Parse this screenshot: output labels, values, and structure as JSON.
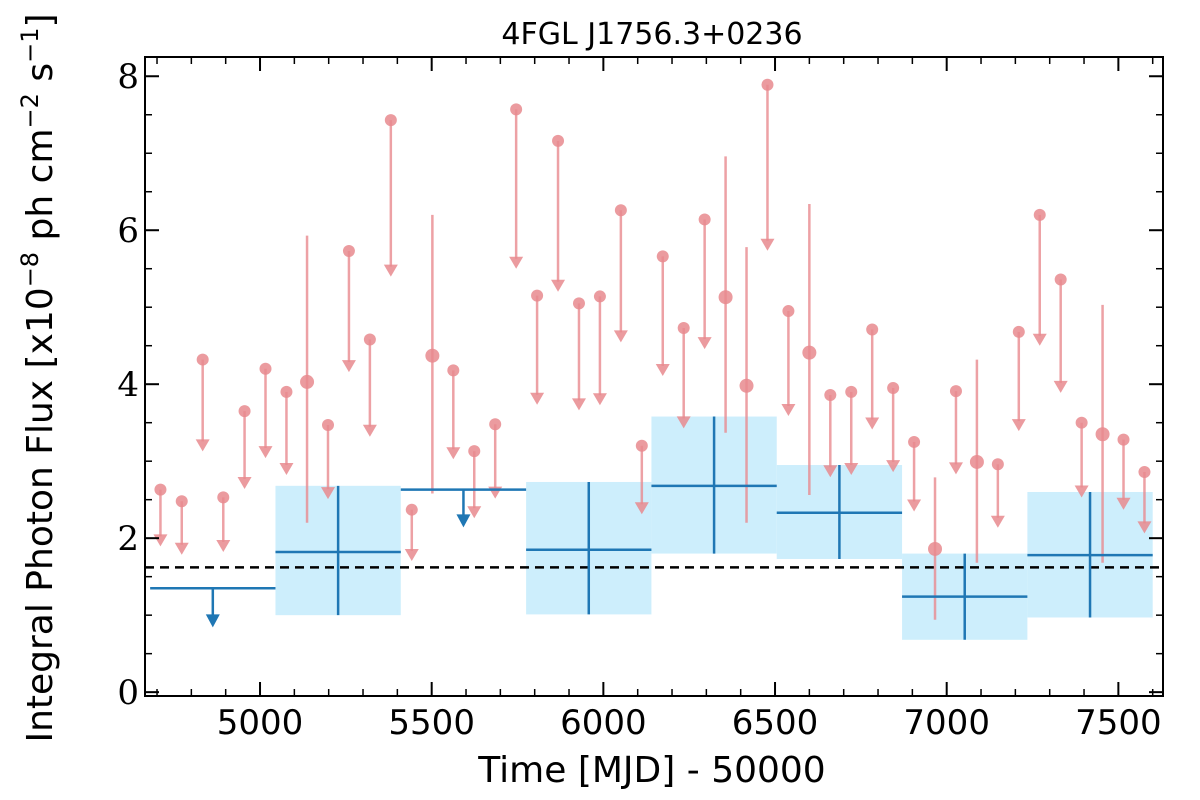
{
  "chart_data": {
    "type": "scatter",
    "title": "4FGL J1756.3+0236",
    "xlabel": "Time [MJD] - 50000",
    "ylabel_main": "Integral Photon Flux [x10",
    "ylabel_exp1": "−8",
    "ylabel_mid": " ph cm",
    "ylabel_exp2": "−2",
    "ylabel_end": " s",
    "ylabel_exp3": "−1",
    "ylabel_close": "]",
    "xlim": [
      4665,
      7630
    ],
    "ylim": [
      -0.05,
      8.25
    ],
    "xticks": [
      5000,
      5500,
      6000,
      6500,
      7000,
      7500
    ],
    "xtick_labels": [
      "5000",
      "5500",
      "6000",
      "6500",
      "7000",
      "7500"
    ],
    "yticks": [
      0,
      2,
      4,
      6,
      8
    ],
    "ytick_labels": [
      "0",
      "2",
      "4",
      "6",
      "8"
    ],
    "baseline_flux": 1.62,
    "colors": {
      "yearly": "#1f77b4",
      "yearly_band": "#cdeefc",
      "monthly": "#e88a8e",
      "baseline": "#000000"
    },
    "yearly_upper_limits": [
      {
        "x_start": 4680,
        "x_end": 5045,
        "y": 1.35,
        "y_arrow_tip": 0.88
      }
    ],
    "yearly_bins_ul2": [
      {
        "x_start": 5410,
        "x_end": 5775,
        "y": 2.63,
        "y_arrow_tip": 2.18
      }
    ],
    "yearly_detections": [
      {
        "x_start": 5045,
        "x_end": 5410,
        "y": 1.82,
        "y_low": 1.0,
        "y_high": 2.68
      },
      {
        "x_start": 5775,
        "x_end": 6140,
        "y": 1.85,
        "y_low": 1.01,
        "y_high": 2.73
      },
      {
        "x_start": 6140,
        "x_end": 6505,
        "y": 2.68,
        "y_low": 1.8,
        "y_high": 3.58
      },
      {
        "x_start": 6505,
        "x_end": 6870,
        "y": 2.33,
        "y_low": 1.73,
        "y_high": 2.95
      },
      {
        "x_start": 6870,
        "x_end": 7235,
        "y": 1.24,
        "y_low": 0.68,
        "y_high": 1.8
      },
      {
        "x_start": 7235,
        "x_end": 7600,
        "y": 1.78,
        "y_low": 0.97,
        "y_high": 2.6
      }
    ],
    "monthly_upper_limits": [
      {
        "x": 4710,
        "y": 2.63
      },
      {
        "x": 4772,
        "y": 2.48
      },
      {
        "x": 4833,
        "y": 4.32
      },
      {
        "x": 4893,
        "y": 2.53
      },
      {
        "x": 4955,
        "y": 3.65
      },
      {
        "x": 5016,
        "y": 4.2
      },
      {
        "x": 5077,
        "y": 3.9
      },
      {
        "x": 5198,
        "y": 3.47
      },
      {
        "x": 5259,
        "y": 5.73
      },
      {
        "x": 5320,
        "y": 4.58
      },
      {
        "x": 5381,
        "y": 7.43
      },
      {
        "x": 5442,
        "y": 2.37
      },
      {
        "x": 5563,
        "y": 4.18
      },
      {
        "x": 5624,
        "y": 3.13
      },
      {
        "x": 5685,
        "y": 3.48
      },
      {
        "x": 5746,
        "y": 7.57
      },
      {
        "x": 5807,
        "y": 5.15
      },
      {
        "x": 5868,
        "y": 7.16
      },
      {
        "x": 5929,
        "y": 5.05
      },
      {
        "x": 5990,
        "y": 5.14
      },
      {
        "x": 6051,
        "y": 6.26
      },
      {
        "x": 6112,
        "y": 3.2
      },
      {
        "x": 6173,
        "y": 5.66
      },
      {
        "x": 6234,
        "y": 4.73
      },
      {
        "x": 6295,
        "y": 6.14
      },
      {
        "x": 6478,
        "y": 7.89
      },
      {
        "x": 6539,
        "y": 4.95
      },
      {
        "x": 6661,
        "y": 3.86
      },
      {
        "x": 6722,
        "y": 3.9
      },
      {
        "x": 6783,
        "y": 4.71
      },
      {
        "x": 6844,
        "y": 3.95
      },
      {
        "x": 6905,
        "y": 3.25
      },
      {
        "x": 7027,
        "y": 3.91
      },
      {
        "x": 7149,
        "y": 2.96
      },
      {
        "x": 7210,
        "y": 4.68
      },
      {
        "x": 7271,
        "y": 6.2
      },
      {
        "x": 7332,
        "y": 5.36
      },
      {
        "x": 7393,
        "y": 3.5
      },
      {
        "x": 7515,
        "y": 3.28
      },
      {
        "x": 7576,
        "y": 2.86
      }
    ],
    "monthly_detections": [
      {
        "x": 5137,
        "y": 4.03,
        "y_low": 2.2,
        "y_high": 5.93
      },
      {
        "x": 5502,
        "y": 4.37,
        "y_low": 2.58,
        "y_high": 6.2
      },
      {
        "x": 6356,
        "y": 5.13,
        "y_low": 3.37,
        "y_high": 6.96
      },
      {
        "x": 6417,
        "y": 3.98,
        "y_low": 2.2,
        "y_high": 5.78
      },
      {
        "x": 6600,
        "y": 4.41,
        "y_low": 2.56,
        "y_high": 6.34
      },
      {
        "x": 6966,
        "y": 1.86,
        "y_low": 0.94,
        "y_high": 2.79
      },
      {
        "x": 7088,
        "y": 2.99,
        "y_low": 1.68,
        "y_high": 4.32
      },
      {
        "x": 7454,
        "y": 3.35,
        "y_low": 1.68,
        "y_high": 5.03
      }
    ]
  }
}
